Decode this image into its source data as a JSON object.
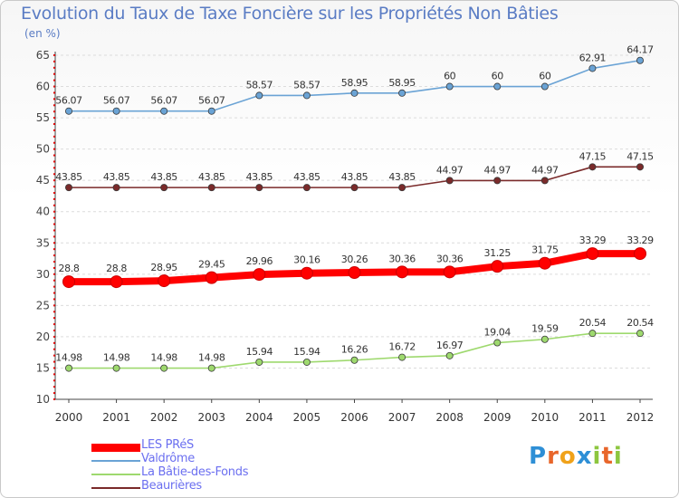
{
  "title": "Evolution du Taux de Taxe Foncière sur les Propriétés Non Bâties",
  "unit_label": "(en %)",
  "logo": {
    "text": "Proxiti",
    "letters": [
      {
        "ch": "P",
        "color": "#2e8fd6"
      },
      {
        "ch": "r",
        "color": "#e8662b"
      },
      {
        "ch": "o",
        "color": "#f0a21a"
      },
      {
        "ch": "x",
        "color": "#2e8fd6"
      },
      {
        "ch": "i",
        "color": "#8dc63f"
      },
      {
        "ch": "t",
        "color": "#e8662b"
      },
      {
        "ch": "i",
        "color": "#8dc63f"
      }
    ]
  },
  "chart_data": {
    "type": "line",
    "title": "Evolution du Taux de Taxe Foncière sur les Propriétés Non Bâties",
    "ylabel": "(en %)",
    "xlabel": "",
    "x": [
      "2000",
      "2001",
      "2002",
      "2003",
      "2004",
      "2005",
      "2006",
      "2007",
      "2008",
      "2009",
      "2010",
      "2011",
      "2012"
    ],
    "ylim": [
      10,
      65
    ],
    "yticks": [
      10,
      15,
      20,
      25,
      30,
      35,
      40,
      45,
      50,
      55,
      60,
      65
    ],
    "grid": true,
    "legend_position": "bottom-left",
    "series": [
      {
        "name": "LES PRéS",
        "color": "#ff0000",
        "emphasis": true,
        "values": [
          28.8,
          28.8,
          28.95,
          29.45,
          29.96,
          30.16,
          30.26,
          30.36,
          30.36,
          31.25,
          31.75,
          33.29,
          33.29
        ],
        "labels": [
          "28.8",
          "28.8",
          "28.95",
          "29.45",
          "29.96",
          "30.16",
          "30.26",
          "30.36",
          "30.36",
          "31.25",
          "31.75",
          "33.29",
          "33.29"
        ]
      },
      {
        "name": "Valdrôme",
        "color": "#6aa3d5",
        "values": [
          56.07,
          56.07,
          56.07,
          56.07,
          58.57,
          58.57,
          58.95,
          58.95,
          60,
          60,
          60,
          62.91,
          64.17
        ],
        "labels": [
          "56.07",
          "56.07",
          "56.07",
          "56.07",
          "58.57",
          "58.57",
          "58.95",
          "58.95",
          "60",
          "60",
          "60",
          "62.91",
          "64.17"
        ]
      },
      {
        "name": "La Bâtie-des-Fonds",
        "color": "#9ed96e",
        "values": [
          14.98,
          14.98,
          14.98,
          14.98,
          15.94,
          15.94,
          16.26,
          16.72,
          16.97,
          19.04,
          19.59,
          20.54,
          20.54
        ],
        "labels": [
          "14.98",
          "14.98",
          "14.98",
          "14.98",
          "15.94",
          "15.94",
          "16.26",
          "16.72",
          "16.97",
          "19.04",
          "19.59",
          "20.54",
          "20.54"
        ]
      },
      {
        "name": "Beaurières",
        "color": "#7a2a2a",
        "values": [
          43.85,
          43.85,
          43.85,
          43.85,
          43.85,
          43.85,
          43.85,
          43.85,
          44.97,
          44.97,
          44.97,
          47.15,
          47.15
        ],
        "labels": [
          "43.85",
          "43.85",
          "43.85",
          "43.85",
          "43.85",
          "43.85",
          "43.85",
          "43.85",
          "44.97",
          "44.97",
          "44.97",
          "47.15",
          "47.15"
        ]
      }
    ]
  }
}
